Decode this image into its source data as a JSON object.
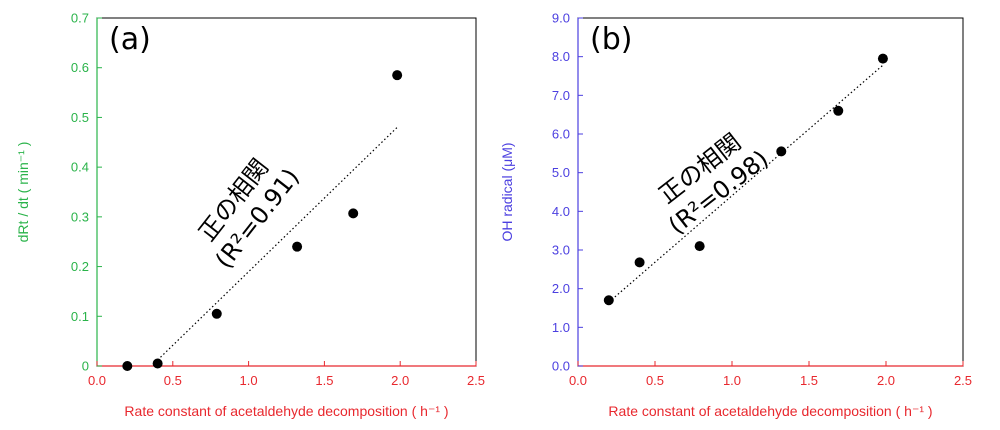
{
  "colors": {
    "x_axis": "#e8282e",
    "y_axis_a": "#2ab34a",
    "y_axis_b": "#4b3fe0",
    "points": "#000000",
    "trend": "#000000"
  },
  "chart_data": [
    {
      "type": "scatter",
      "panel_label": "(a)",
      "xlabel": "Rate constant of acetaldehyde decomposition ( h⁻¹ )",
      "ylabel": "dRt / dt ( min⁻¹ )",
      "xlim": [
        0,
        2.5
      ],
      "ylim": [
        0,
        0.7
      ],
      "x_ticks": [
        "0.0",
        "0.5",
        "1.0",
        "1.5",
        "2.0",
        "2.5"
      ],
      "y_ticks": [
        "0",
        "0.1",
        "0.2",
        "0.3",
        "0.4",
        "0.5",
        "0.6",
        "0.7"
      ],
      "grid": false,
      "points": [
        {
          "x": 0.2,
          "y": 0.0
        },
        {
          "x": 0.4,
          "y": 0.005
        },
        {
          "x": 0.79,
          "y": 0.105
        },
        {
          "x": 1.32,
          "y": 0.24
        },
        {
          "x": 1.69,
          "y": 0.307
        },
        {
          "x": 1.98,
          "y": 0.585
        }
      ],
      "trendline": {
        "x": [
          0.4,
          1.98
        ],
        "y": [
          0.012,
          0.48
        ]
      },
      "annotation": {
        "line1": "正の相関",
        "line2": "(R²=0.91)"
      }
    },
    {
      "type": "scatter",
      "panel_label": "(b)",
      "xlabel": "Rate constant of acetaldehyde decomposition ( h⁻¹ )",
      "ylabel": "OH radical (μM)",
      "xlim": [
        0,
        2.5
      ],
      "ylim": [
        0,
        9
      ],
      "x_ticks": [
        "0.0",
        "0.5",
        "1.0",
        "1.5",
        "2.0",
        "2.5"
      ],
      "y_ticks": [
        "0.0",
        "1.0",
        "2.0",
        "3.0",
        "4.0",
        "5.0",
        "6.0",
        "7.0",
        "8.0",
        "9.0"
      ],
      "grid": false,
      "points": [
        {
          "x": 0.2,
          "y": 1.7
        },
        {
          "x": 0.4,
          "y": 2.68
        },
        {
          "x": 0.79,
          "y": 3.1
        },
        {
          "x": 1.32,
          "y": 5.55
        },
        {
          "x": 1.69,
          "y": 6.6
        },
        {
          "x": 1.98,
          "y": 7.95
        }
      ],
      "trendline": {
        "x": [
          0.2,
          1.98
        ],
        "y": [
          1.65,
          7.78
        ]
      },
      "annotation": {
        "line1": "正の相関",
        "line2": "(R²=0.98)"
      }
    }
  ]
}
